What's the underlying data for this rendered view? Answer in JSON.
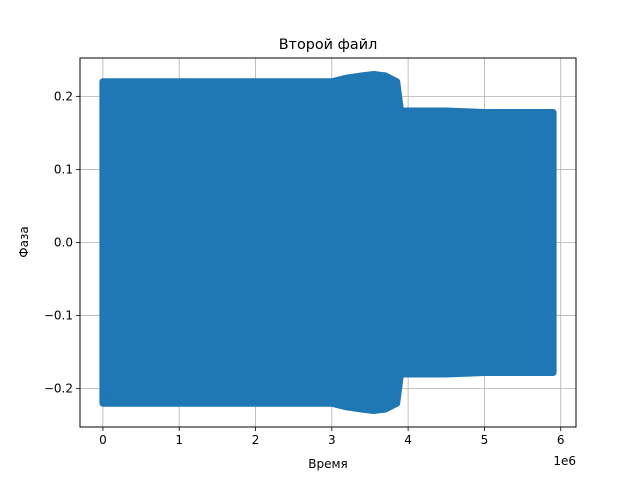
{
  "chart_data": {
    "type": "scatter",
    "title": "Второй файл",
    "xlabel": "Время",
    "ylabel": "Фаза",
    "x_offset_text": "1e6",
    "xlim": [
      -300000,
      6200000
    ],
    "ylim": [
      -0.2525,
      0.2525
    ],
    "grid": true,
    "x_tick_values": [
      0,
      1000000,
      2000000,
      3000000,
      4000000,
      5000000,
      6000000
    ],
    "x_tick_labels": [
      "0",
      "1",
      "2",
      "3",
      "4",
      "5",
      "6"
    ],
    "y_tick_values": [
      -0.2,
      -0.1,
      0.0,
      0.1,
      0.2
    ],
    "y_tick_labels": [
      "−0.2",
      "−0.1",
      "0.0",
      "0.1",
      "0.2"
    ],
    "series": [
      {
        "color": "#1f77b4",
        "envelope": [
          {
            "x": 0,
            "upper": 0.22,
            "lower": -0.22
          },
          {
            "x": 500000,
            "upper": 0.22,
            "lower": -0.22
          },
          {
            "x": 1000000,
            "upper": 0.22,
            "lower": -0.22
          },
          {
            "x": 1500000,
            "upper": 0.22,
            "lower": -0.22
          },
          {
            "x": 2000000,
            "upper": 0.22,
            "lower": -0.22
          },
          {
            "x": 2500000,
            "upper": 0.22,
            "lower": -0.22
          },
          {
            "x": 3000000,
            "upper": 0.22,
            "lower": -0.22
          },
          {
            "x": 3200000,
            "upper": 0.225,
            "lower": -0.225
          },
          {
            "x": 3400000,
            "upper": 0.228,
            "lower": -0.228
          },
          {
            "x": 3550000,
            "upper": 0.23,
            "lower": -0.23
          },
          {
            "x": 3700000,
            "upper": 0.228,
            "lower": -0.228
          },
          {
            "x": 3850000,
            "upper": 0.22,
            "lower": -0.22
          },
          {
            "x": 3900000,
            "upper": 0.18,
            "lower": -0.18
          },
          {
            "x": 4500000,
            "upper": 0.18,
            "lower": -0.18
          },
          {
            "x": 5000000,
            "upper": 0.178,
            "lower": -0.178
          },
          {
            "x": 5500000,
            "upper": 0.178,
            "lower": -0.178
          },
          {
            "x": 5900000,
            "upper": 0.178,
            "lower": -0.178
          }
        ]
      }
    ]
  }
}
